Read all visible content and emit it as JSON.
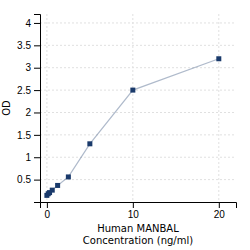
{
  "chart_data": {
    "type": "line",
    "x": [
      0,
      0.156,
      0.313,
      0.625,
      1.25,
      2.5,
      5,
      10,
      20
    ],
    "values": [
      0.148,
      0.185,
      0.21,
      0.265,
      0.37,
      0.56,
      1.3,
      2.5,
      3.2
    ],
    "color": "#1a3a6b",
    "marker": "square",
    "xlabel": "Human MANBAL\nConcentration (ng/ml)",
    "ylabel": "OD",
    "xlim": [
      -0.8,
      22
    ],
    "ylim": [
      0,
      4.2
    ],
    "xticks": [
      0,
      10,
      20
    ],
    "yticks": [
      0.5,
      1,
      1.5,
      2,
      2.5,
      3,
      3.5,
      4
    ],
    "grid": true
  }
}
